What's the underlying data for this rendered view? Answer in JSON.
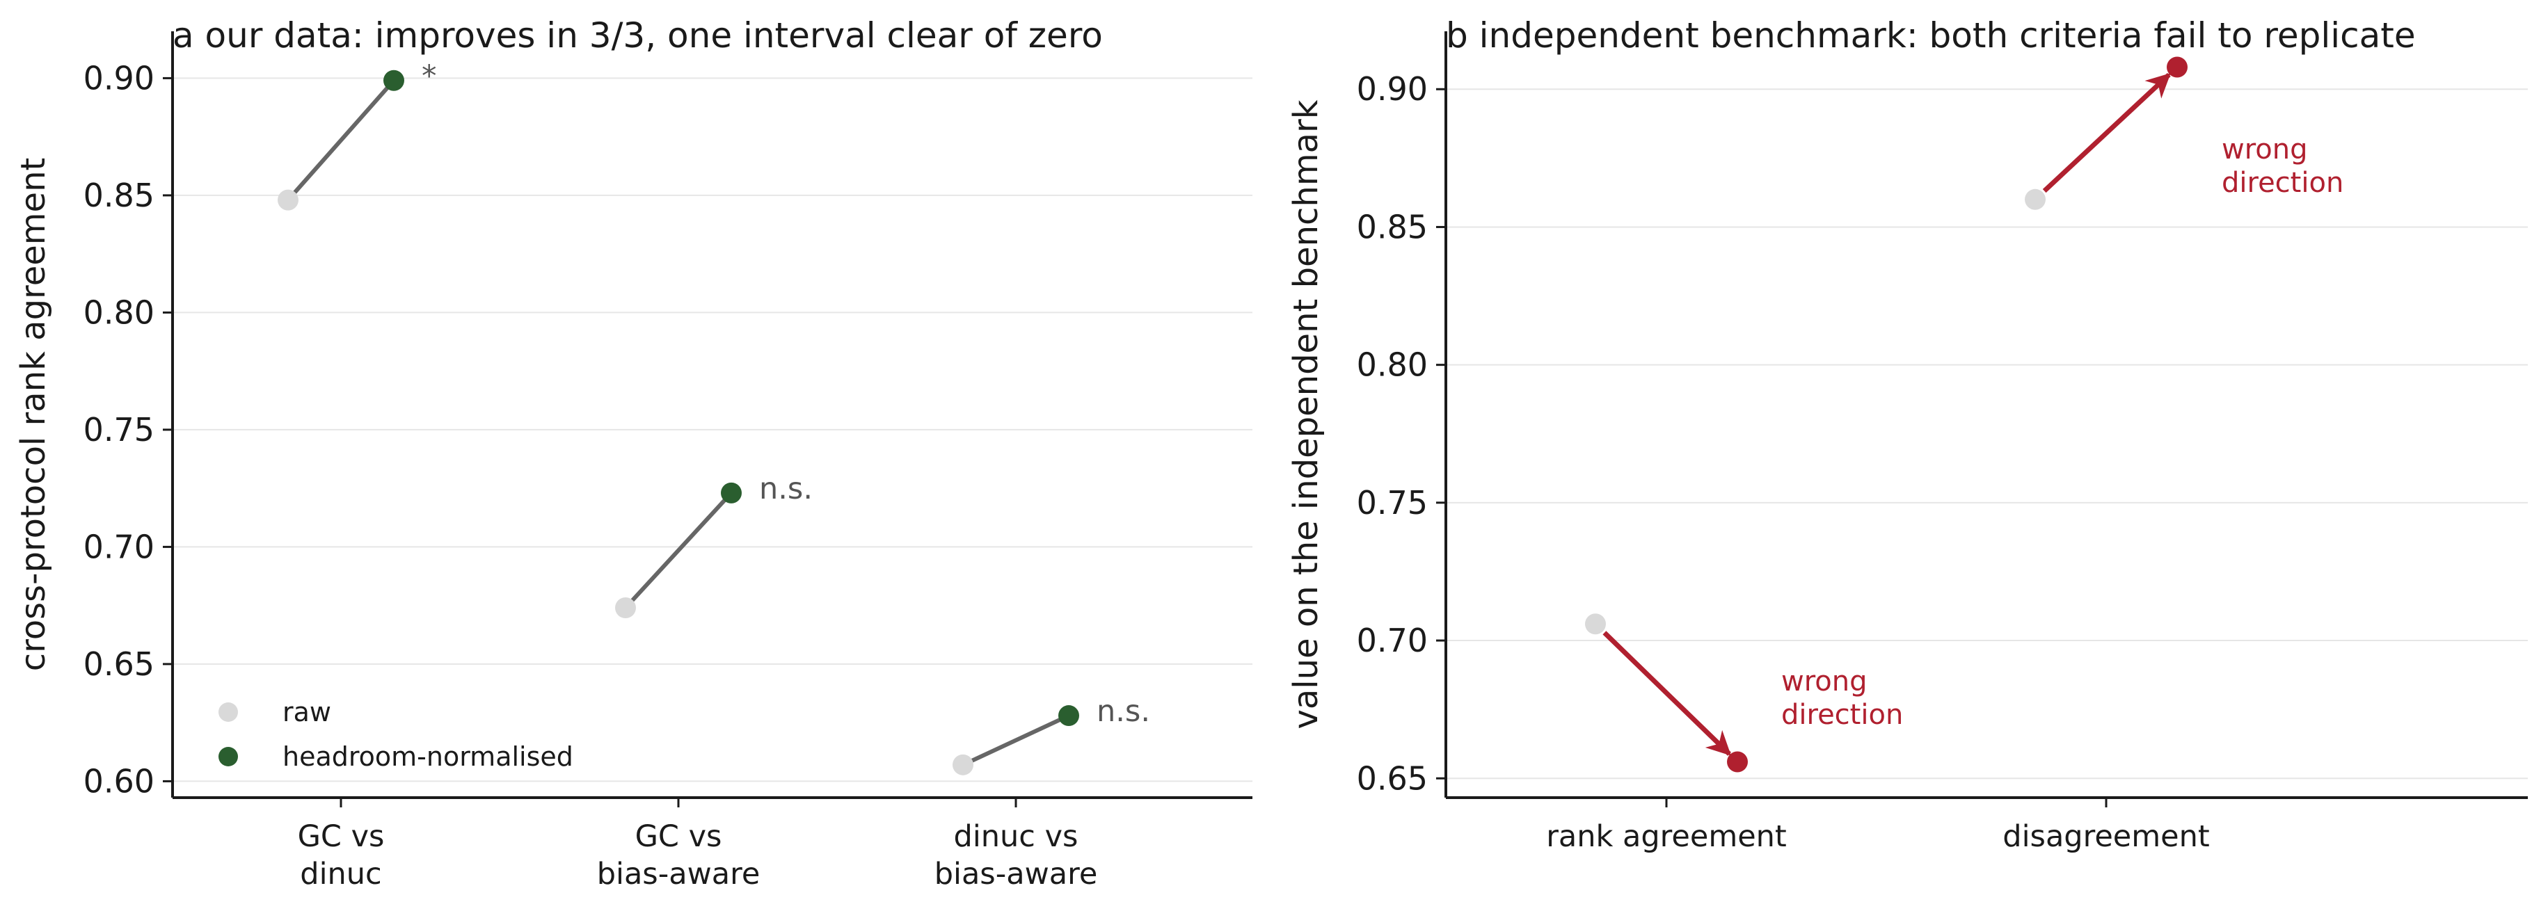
{
  "chart_data": [
    {
      "type": "scatter",
      "panel": "a",
      "title": "a  our data: improves in 3/3, one interval clear of zero",
      "ylabel": "cross-protocol rank agreement",
      "ylim": [
        0.593,
        0.92
      ],
      "yticks": [
        "0.60",
        "0.65",
        "0.70",
        "0.75",
        "0.80",
        "0.85",
        "0.90"
      ],
      "grid": true,
      "categories": [
        [
          "GC vs",
          "dinuc"
        ],
        [
          "GC vs",
          "bias-aware"
        ],
        [
          "dinuc vs",
          "bias-aware"
        ]
      ],
      "series": [
        {
          "name": "raw",
          "values": [
            0.848,
            0.674,
            0.607
          ]
        },
        {
          "name": "headroom-normalised",
          "values": [
            0.899,
            0.723,
            0.628
          ]
        }
      ],
      "annotations": [
        "*",
        "n.s.",
        "n.s."
      ],
      "legend_position": "lower-left",
      "colors": {
        "raw": "#d9d9d9",
        "normalised": "#2a5e2f",
        "connector": "#666666",
        "annotation": "#555555"
      }
    },
    {
      "type": "scatter",
      "panel": "b",
      "title": "b  independent benchmark: both criteria fail to replicate",
      "ylabel": "value on the independent benchmark",
      "ylim": [
        0.643,
        0.921
      ],
      "yticks": [
        "0.65",
        "0.70",
        "0.75",
        "0.80",
        "0.85",
        "0.90"
      ],
      "grid": true,
      "categories": [
        [
          "rank agreement"
        ],
        [
          "disagreement"
        ]
      ],
      "series": [
        {
          "name": "raw",
          "values": [
            0.706,
            0.86
          ]
        },
        {
          "name": "normalised",
          "values": [
            0.656,
            0.908
          ]
        }
      ],
      "annotations": [
        [
          "wrong",
          "direction"
        ],
        [
          "wrong",
          "direction"
        ]
      ],
      "colors": {
        "raw": "#d9d9d9",
        "normalised": "#b0202f",
        "arrow": "#b0202f"
      }
    }
  ]
}
